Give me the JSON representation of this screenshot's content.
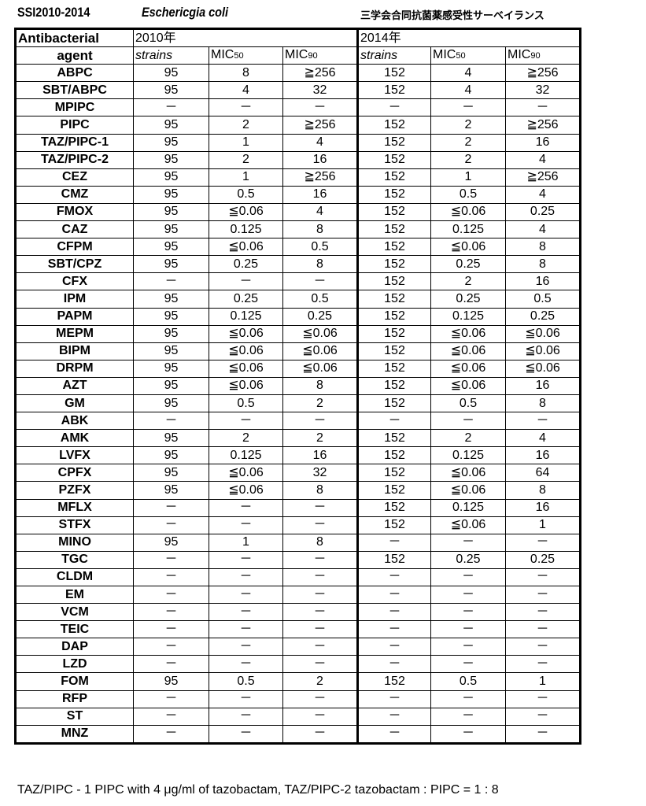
{
  "title": "SSI2010-2014",
  "species": "Eschericgia coli",
  "survey": "三学会合同抗菌薬感受性サーベイランス",
  "header": {
    "agent_line1": "Antibacterial",
    "agent_line2": "agent",
    "year1": "2010年",
    "year2": "2014年",
    "strains": "strains",
    "mic": "MIC",
    "mic50": "50",
    "mic90": "90"
  },
  "rows": [
    [
      "ABPC",
      "95",
      "8",
      "≧256",
      "152",
      "4",
      "≧256"
    ],
    [
      "SBT/ABPC",
      "95",
      "4",
      "32",
      "152",
      "4",
      "32"
    ],
    [
      "MPIPC",
      "－",
      "－",
      "－",
      "－",
      "－",
      "－"
    ],
    [
      "PIPC",
      "95",
      "2",
      "≧256",
      "152",
      "2",
      "≧256"
    ],
    [
      "TAZ/PIPC-1",
      "95",
      "1",
      "4",
      "152",
      "2",
      "16"
    ],
    [
      "TAZ/PIPC-2",
      "95",
      "2",
      "16",
      "152",
      "2",
      "4"
    ],
    [
      "CEZ",
      "95",
      "1",
      "≧256",
      "152",
      "1",
      "≧256"
    ],
    [
      "CMZ",
      "95",
      "0.5",
      "16",
      "152",
      "0.5",
      "4"
    ],
    [
      "FMOX",
      "95",
      "≦0.06",
      "4",
      "152",
      "≦0.06",
      "0.25"
    ],
    [
      "CAZ",
      "95",
      "0.125",
      "8",
      "152",
      "0.125",
      "4"
    ],
    [
      "CFPM",
      "95",
      "≦0.06",
      "0.5",
      "152",
      "≦0.06",
      "8"
    ],
    [
      "SBT/CPZ",
      "95",
      "0.25",
      "8",
      "152",
      "0.25",
      "8"
    ],
    [
      "CFX",
      "－",
      "－",
      "－",
      "152",
      "2",
      "16"
    ],
    [
      "IPM",
      "95",
      "0.25",
      "0.5",
      "152",
      "0.25",
      "0.5"
    ],
    [
      "PAPM",
      "95",
      "0.125",
      "0.25",
      "152",
      "0.125",
      "0.25"
    ],
    [
      "MEPM",
      "95",
      "≦0.06",
      "≦0.06",
      "152",
      "≦0.06",
      "≦0.06"
    ],
    [
      "BIPM",
      "95",
      "≦0.06",
      "≦0.06",
      "152",
      "≦0.06",
      "≦0.06"
    ],
    [
      "DRPM",
      "95",
      "≦0.06",
      "≦0.06",
      "152",
      "≦0.06",
      "≦0.06"
    ],
    [
      "AZT",
      "95",
      "≦0.06",
      "8",
      "152",
      "≦0.06",
      "16"
    ],
    [
      "GM",
      "95",
      "0.5",
      "2",
      "152",
      "0.5",
      "8"
    ],
    [
      "ABK",
      "－",
      "－",
      "－",
      "－",
      "－",
      "－"
    ],
    [
      "AMK",
      "95",
      "2",
      "2",
      "152",
      "2",
      "4"
    ],
    [
      "LVFX",
      "95",
      "0.125",
      "16",
      "152",
      "0.125",
      "16"
    ],
    [
      "CPFX",
      "95",
      "≦0.06",
      "32",
      "152",
      "≦0.06",
      "64"
    ],
    [
      "PZFX",
      "95",
      "≦0.06",
      "8",
      "152",
      "≦0.06",
      "8"
    ],
    [
      "MFLX",
      "－",
      "－",
      "－",
      "152",
      "0.125",
      "16"
    ],
    [
      "STFX",
      "－",
      "－",
      "－",
      "152",
      "≦0.06",
      "1"
    ],
    [
      "MINO",
      "95",
      "1",
      "8",
      "－",
      "－",
      "－"
    ],
    [
      "TGC",
      "－",
      "－",
      "－",
      "152",
      "0.25",
      "0.25"
    ],
    [
      "CLDM",
      "－",
      "－",
      "－",
      "－",
      "－",
      "－"
    ],
    [
      "EM",
      "－",
      "－",
      "－",
      "－",
      "－",
      "－"
    ],
    [
      "VCM",
      "－",
      "－",
      "－",
      "－",
      "－",
      "－"
    ],
    [
      "TEIC",
      "－",
      "－",
      "－",
      "－",
      "－",
      "－"
    ],
    [
      "DAP",
      "－",
      "－",
      "－",
      "－",
      "－",
      "－"
    ],
    [
      "LZD",
      "－",
      "－",
      "－",
      "－",
      "－",
      "－"
    ],
    [
      "FOM",
      "95",
      "0.5",
      "2",
      "152",
      "0.5",
      "1"
    ],
    [
      "RFP",
      "－",
      "－",
      "－",
      "－",
      "－",
      "－"
    ],
    [
      "ST",
      "－",
      "－",
      "－",
      "－",
      "－",
      "－"
    ],
    [
      "MNZ",
      "－",
      "－",
      "－",
      "－",
      "－",
      "－"
    ]
  ],
  "footnote": "TAZ/PIPC - 1 PIPC with 4 μg/ml of tazobactam, TAZ/PIPC-2 tazobactam : PIPC = 1 : 8"
}
